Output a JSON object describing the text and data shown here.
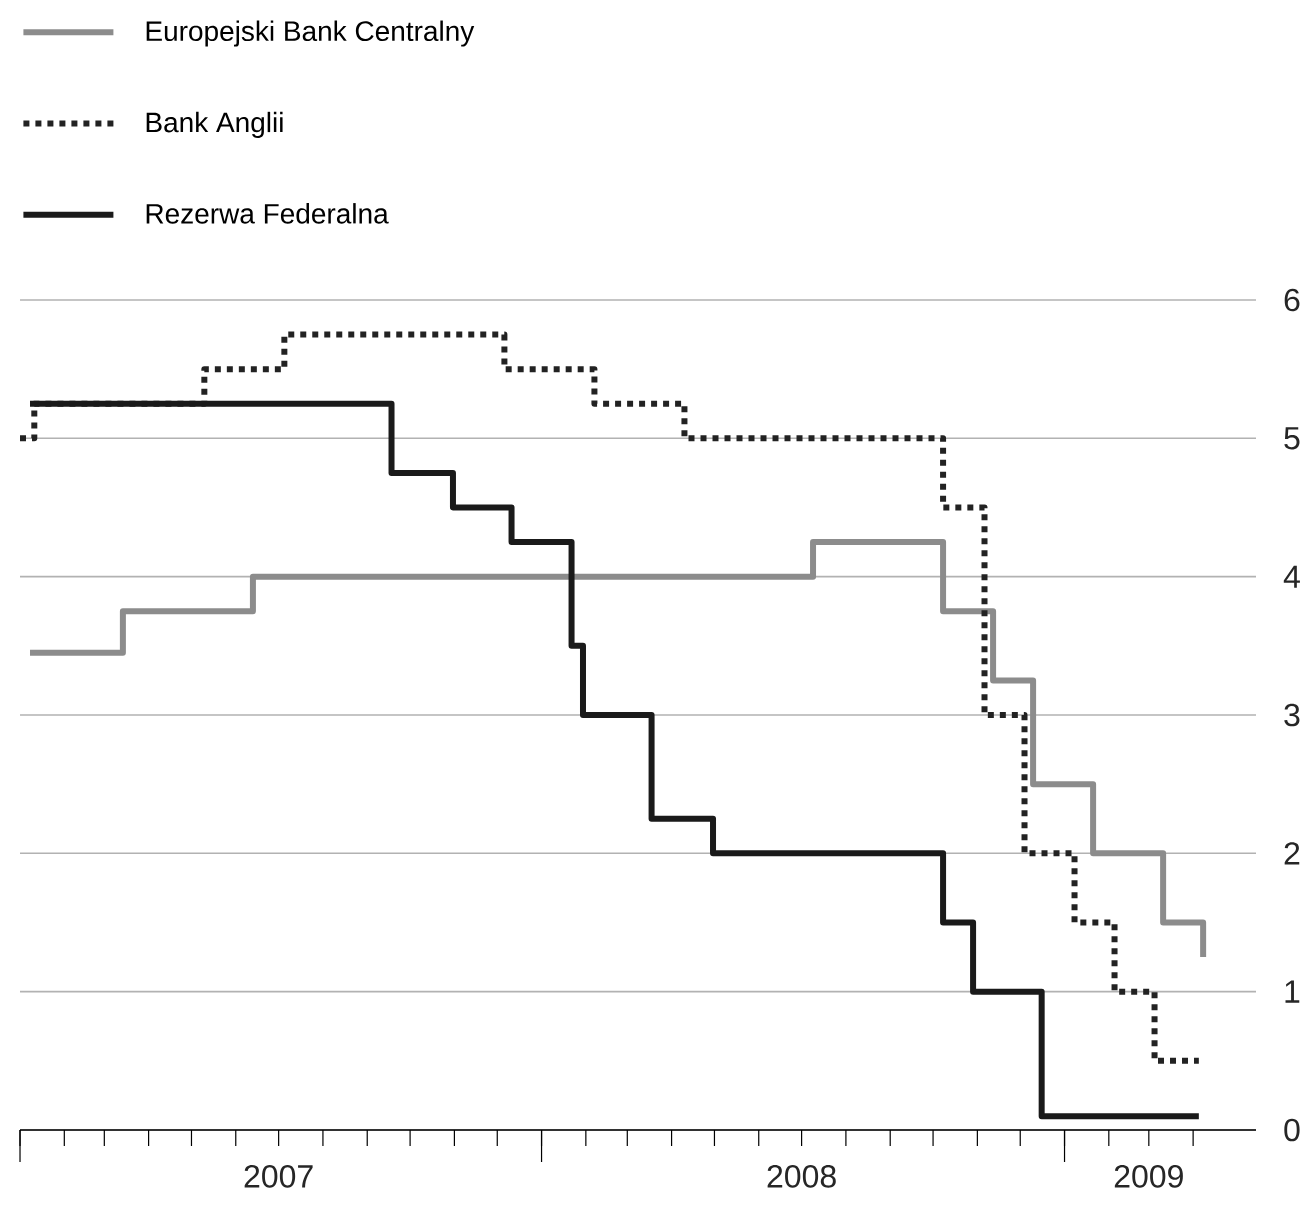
{
  "chart_data": {
    "type": "step",
    "xlim": [
      "2007-01-01",
      "2009-05-15"
    ],
    "xticks": [
      {
        "value": "2007-01-01",
        "label": null
      },
      {
        "value": "2007-02-01",
        "label": null
      },
      {
        "value": "2007-03-01",
        "label": null
      },
      {
        "value": "2007-04-01",
        "label": null
      },
      {
        "value": "2007-05-01",
        "label": null
      },
      {
        "value": "2007-06-01",
        "label": null
      },
      {
        "value": "2007-07-01",
        "label": "2007"
      },
      {
        "value": "2007-08-01",
        "label": null
      },
      {
        "value": "2007-09-01",
        "label": null
      },
      {
        "value": "2007-10-01",
        "label": null
      },
      {
        "value": "2007-11-01",
        "label": null
      },
      {
        "value": "2007-12-01",
        "label": null
      },
      {
        "value": "2008-01-01",
        "label": null
      },
      {
        "value": "2008-02-01",
        "label": null
      },
      {
        "value": "2008-03-01",
        "label": null
      },
      {
        "value": "2008-04-01",
        "label": null
      },
      {
        "value": "2008-05-01",
        "label": null
      },
      {
        "value": "2008-06-01",
        "label": null
      },
      {
        "value": "2008-07-01",
        "label": "2008"
      },
      {
        "value": "2008-08-01",
        "label": null
      },
      {
        "value": "2008-09-01",
        "label": null
      },
      {
        "value": "2008-10-01",
        "label": null
      },
      {
        "value": "2008-11-01",
        "label": null
      },
      {
        "value": "2008-12-01",
        "label": null
      },
      {
        "value": "2009-01-01",
        "label": null
      },
      {
        "value": "2009-02-01",
        "label": null
      },
      {
        "value": "2009-03-01",
        "label": "2009"
      },
      {
        "value": "2009-04-01",
        "label": null
      }
    ],
    "ylim": [
      0,
      6
    ],
    "yticks": [
      0,
      1,
      2,
      3,
      4,
      5,
      6
    ],
    "grid": "y",
    "legend": "top left",
    "series": [
      {
        "name": "Europejski Bank Centralny",
        "color": "#8c8c8c",
        "line_style": "solid",
        "x": [
          "2007-01-08",
          "2007-03-14",
          "2007-06-13",
          "2008-07-09",
          "2008-10-08",
          "2008-11-12",
          "2008-12-10",
          "2009-01-21",
          "2009-03-11",
          "2009-04-08"
        ],
        "values": [
          3.45,
          3.75,
          4.0,
          4.25,
          3.75,
          3.25,
          2.5,
          2.0,
          1.5,
          1.25
        ]
      },
      {
        "name": "Bank Anglii",
        "color": "#222222",
        "line_style": "dotted",
        "x": [
          "2007-01-01",
          "2007-01-11",
          "2007-05-10",
          "2007-07-05",
          "2007-12-06",
          "2008-02-07",
          "2008-04-10",
          "2008-10-08",
          "2008-11-06",
          "2008-12-04",
          "2009-01-08",
          "2009-02-05",
          "2009-03-05",
          "2009-04-05"
        ],
        "values": [
          5.0,
          5.25,
          5.5,
          5.75,
          5.5,
          5.25,
          5.0,
          4.5,
          3.0,
          2.0,
          1.5,
          1.0,
          0.5,
          0.5
        ]
      },
      {
        "name": "Rezerwa Federalna",
        "color": "#1a1a1a",
        "line_style": "solid",
        "x": [
          "2007-01-08",
          "2007-09-18",
          "2007-10-31",
          "2007-12-11",
          "2008-01-22",
          "2008-01-30",
          "2008-03-18",
          "2008-04-30",
          "2008-10-08",
          "2008-10-29",
          "2008-12-16",
          "2009-04-05"
        ],
        "values": [
          5.25,
          4.75,
          4.5,
          4.25,
          3.5,
          3.0,
          2.25,
          2.0,
          1.5,
          1.0,
          0.1,
          0.1
        ]
      }
    ]
  }
}
